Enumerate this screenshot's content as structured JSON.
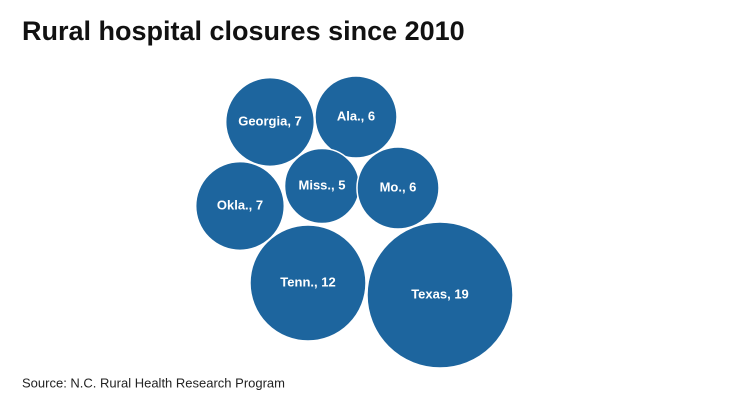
{
  "chart_data": {
    "type": "bubble",
    "title": "Rural hospital closures since 2010",
    "values": [
      7,
      6,
      7,
      5,
      6,
      12,
      19
    ],
    "value_labels": [
      "Georgia, 7",
      "Ala., 6",
      "Okla., 7",
      "Miss., 5",
      "Mo., 6",
      "Tenn., 12",
      "Texas, 19"
    ],
    "color": "#1d659e",
    "source": "Source: N.C. Rural Health Research Program"
  }
}
